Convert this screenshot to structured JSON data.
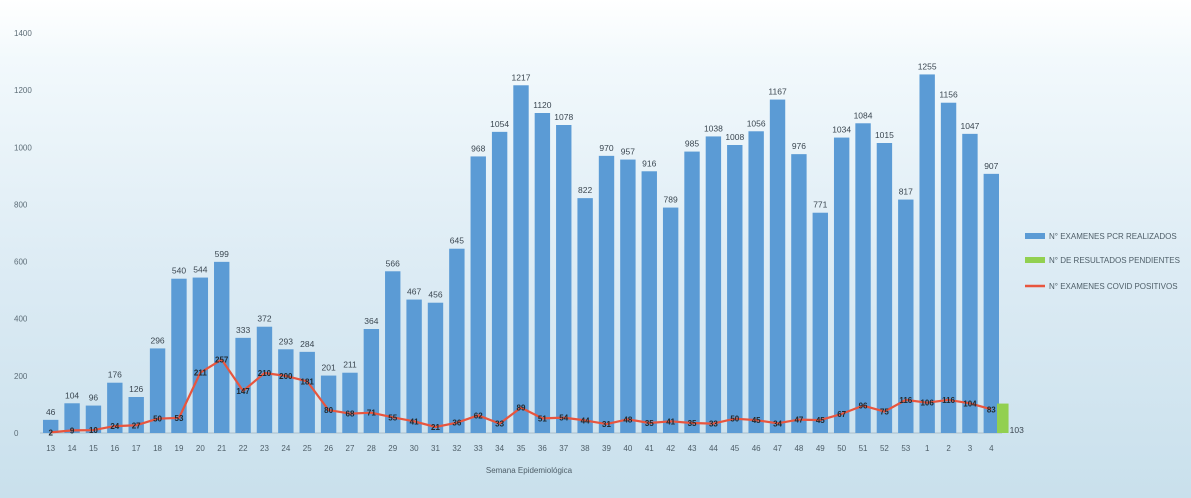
{
  "chart_data": {
    "type": "bar",
    "xlabel": "Semana Epidemiológica",
    "ylabel": "",
    "ylim": [
      0,
      1400
    ],
    "yticks": [
      0,
      200,
      400,
      600,
      800,
      1000,
      1200,
      1400
    ],
    "grid": false,
    "legend_position": "right",
    "categories": [
      "13",
      "14",
      "15",
      "16",
      "17",
      "18",
      "19",
      "20",
      "21",
      "22",
      "23",
      "24",
      "25",
      "26",
      "27",
      "28",
      "29",
      "30",
      "31",
      "32",
      "33",
      "34",
      "35",
      "36",
      "37",
      "38",
      "39",
      "40",
      "41",
      "42",
      "43",
      "44",
      "45",
      "46",
      "47",
      "48",
      "49",
      "50",
      "51",
      "52",
      "53",
      "1",
      "2",
      "3",
      "4"
    ],
    "series": [
      {
        "name": "N° EXAMENES PCR REALIZADOS",
        "type": "bar",
        "color": "#5b9bd5",
        "values": [
          46,
          104,
          96,
          176,
          126,
          296,
          540,
          544,
          599,
          333,
          372,
          293,
          284,
          201,
          211,
          364,
          566,
          467,
          456,
          645,
          968,
          1054,
          1217,
          1120,
          1078,
          822,
          970,
          957,
          916,
          789,
          985,
          1038,
          1008,
          1056,
          1167,
          976,
          771,
          1034,
          1084,
          1015,
          817,
          1255,
          1156,
          1047,
          907
        ]
      },
      {
        "name": "N° DE RESULTADOS PENDIENTES",
        "type": "bar",
        "color": "#92d050",
        "values": [
          null,
          null,
          null,
          null,
          null,
          null,
          null,
          null,
          null,
          null,
          null,
          null,
          null,
          null,
          null,
          null,
          null,
          null,
          null,
          null,
          null,
          null,
          null,
          null,
          null,
          null,
          null,
          null,
          null,
          null,
          null,
          null,
          null,
          null,
          null,
          null,
          null,
          null,
          null,
          null,
          null,
          null,
          null,
          null,
          103
        ]
      },
      {
        "name": "N° EXAMENES COVID POSITIVOS",
        "type": "line",
        "color": "#e8553e",
        "values": [
          2,
          9,
          10,
          24,
          27,
          50,
          53,
          211,
          257,
          147,
          210,
          200,
          181,
          80,
          68,
          71,
          55,
          41,
          21,
          36,
          62,
          33,
          89,
          51,
          54,
          44,
          31,
          48,
          35,
          41,
          35,
          33,
          50,
          45,
          34,
          47,
          45,
          67,
          96,
          75,
          116,
          106,
          116,
          104,
          83
        ]
      }
    ]
  }
}
